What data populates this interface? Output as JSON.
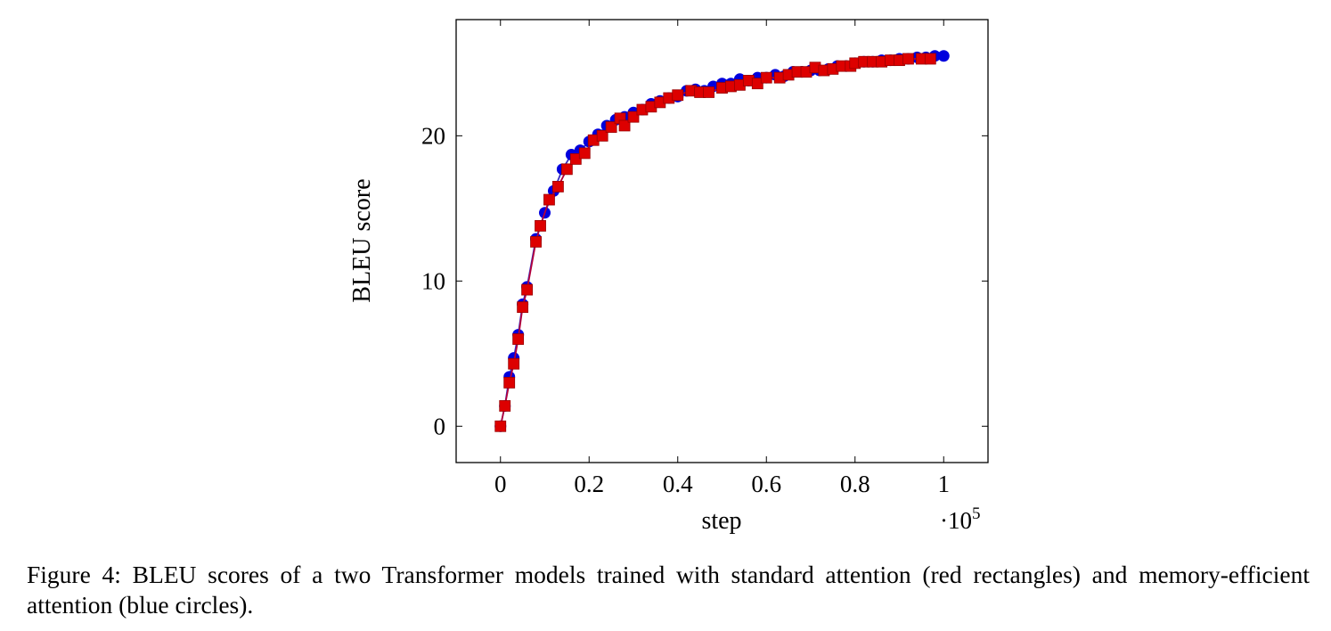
{
  "chart_data": {
    "type": "line",
    "title": "",
    "xlabel": "step",
    "ylabel": "BLEU score",
    "x_multiplier_base": "·10",
    "x_multiplier_exp": "5",
    "xlim": [
      -0.1,
      1.1
    ],
    "ylim": [
      -2.5,
      28
    ],
    "x_ticks": [
      0,
      0.2,
      0.4,
      0.6,
      0.8,
      1
    ],
    "x_tick_labels": [
      "0",
      "0.2",
      "0.4",
      "0.6",
      "0.8",
      "1"
    ],
    "y_ticks": [
      0,
      10,
      20
    ],
    "y_tick_labels": [
      "0",
      "10",
      "20"
    ],
    "grid": false,
    "series": [
      {
        "name": "memory-efficient attention (blue circles)",
        "marker": "circle",
        "color": "#0000dd",
        "line_color": "#3a2fbf",
        "x": [
          0,
          0.01,
          0.02,
          0.03,
          0.04,
          0.05,
          0.06,
          0.08,
          0.1,
          0.12,
          0.14,
          0.16,
          0.18,
          0.2,
          0.22,
          0.24,
          0.26,
          0.28,
          0.3,
          0.32,
          0.34,
          0.36,
          0.38,
          0.4,
          0.42,
          0.44,
          0.46,
          0.48,
          0.5,
          0.52,
          0.54,
          0.56,
          0.58,
          0.6,
          0.62,
          0.64,
          0.66,
          0.68,
          0.7,
          0.72,
          0.74,
          0.76,
          0.78,
          0.8,
          0.82,
          0.84,
          0.86,
          0.88,
          0.9,
          0.92,
          0.94,
          0.96,
          0.98,
          1.0
        ],
        "values": [
          0,
          1.4,
          3.4,
          4.7,
          6.3,
          8.4,
          9.6,
          12.9,
          14.7,
          16.2,
          17.7,
          18.7,
          19.0,
          19.6,
          20.1,
          20.7,
          21.1,
          21.3,
          21.6,
          21.8,
          22.2,
          22.4,
          22.6,
          22.7,
          23.1,
          23.2,
          23.1,
          23.4,
          23.6,
          23.6,
          23.9,
          23.8,
          24.0,
          24.0,
          24.2,
          24.1,
          24.4,
          24.4,
          24.5,
          24.5,
          24.6,
          24.8,
          24.8,
          25.0,
          25.1,
          25.1,
          25.2,
          25.2,
          25.3,
          25.3,
          25.4,
          25.4,
          25.5,
          25.5
        ]
      },
      {
        "name": "standard attention (red rectangles)",
        "marker": "square",
        "color": "#dd0000",
        "line_color": "#b3003b",
        "x": [
          0,
          0.01,
          0.02,
          0.03,
          0.04,
          0.05,
          0.06,
          0.08,
          0.09,
          0.11,
          0.13,
          0.15,
          0.17,
          0.19,
          0.21,
          0.23,
          0.25,
          0.27,
          0.28,
          0.3,
          0.32,
          0.34,
          0.36,
          0.38,
          0.4,
          0.43,
          0.45,
          0.47,
          0.5,
          0.52,
          0.54,
          0.56,
          0.58,
          0.6,
          0.63,
          0.65,
          0.67,
          0.69,
          0.71,
          0.73,
          0.75,
          0.77,
          0.79,
          0.8,
          0.82,
          0.84,
          0.86,
          0.88,
          0.9,
          0.92,
          0.95,
          0.97
        ],
        "values": [
          0,
          1.4,
          3.0,
          4.3,
          6.0,
          8.2,
          9.4,
          12.7,
          13.8,
          15.6,
          16.5,
          17.7,
          18.4,
          18.8,
          19.7,
          20.0,
          20.6,
          21.2,
          20.7,
          21.3,
          21.8,
          22.0,
          22.3,
          22.6,
          22.8,
          23.1,
          23.0,
          23.0,
          23.3,
          23.4,
          23.5,
          23.8,
          23.6,
          24.0,
          24.0,
          24.2,
          24.4,
          24.4,
          24.7,
          24.5,
          24.6,
          24.8,
          24.8,
          25.0,
          25.1,
          25.1,
          25.1,
          25.2,
          25.2,
          25.3,
          25.3,
          25.3
        ]
      }
    ]
  },
  "caption": "Figure 4:  BLEU scores of a two Transformer models trained with standard attention (red rectangles) and memory-efficient attention (blue circles)."
}
